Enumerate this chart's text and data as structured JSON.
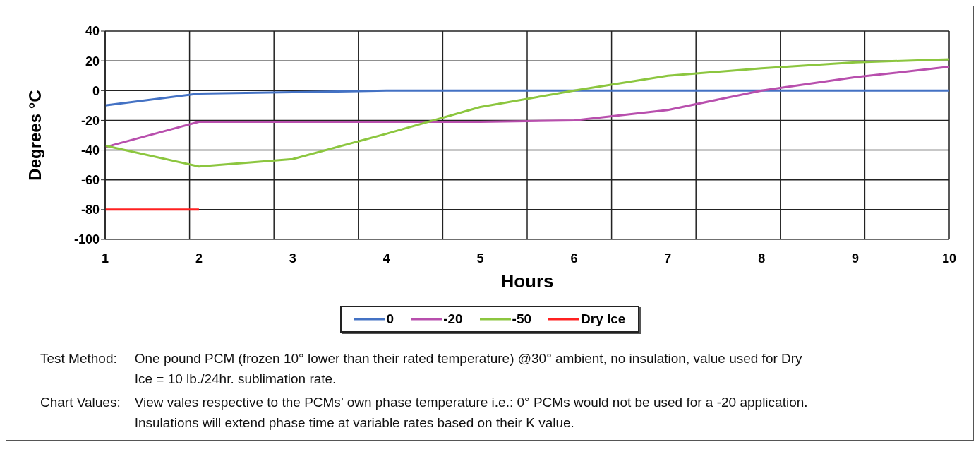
{
  "chart_data": {
    "type": "line",
    "xlabel": "Hours",
    "ylabel": "Degrees °C",
    "categories": [
      "1",
      "2",
      "3",
      "4",
      "5",
      "6",
      "7",
      "8",
      "9",
      "10"
    ],
    "series": [
      {
        "name": "0",
        "color": "#4472c4",
        "values": [
          -10,
          -2,
          -1,
          0,
          0,
          0,
          0,
          0,
          0,
          0
        ]
      },
      {
        "name": "-20",
        "color": "#b84fad",
        "values": [
          -38,
          -21,
          -21,
          -21,
          -21,
          -20,
          -13,
          0,
          9,
          16
        ]
      },
      {
        "name": "-50",
        "color": "#8cc63f",
        "values": [
          -37,
          -51,
          -46,
          -29,
          -11,
          0,
          10,
          15,
          19,
          21
        ]
      },
      {
        "name": "Dry Ice",
        "color": "#ff2020",
        "values": [
          -80,
          -80,
          null,
          null,
          null,
          null,
          null,
          null,
          null,
          null
        ]
      }
    ],
    "ylim": [
      -100,
      40
    ],
    "yticks": [
      -100,
      -80,
      -60,
      -40,
      -20,
      0,
      20,
      40
    ],
    "grid": true,
    "legend": "bottom",
    "marker": "none",
    "line_style": "solid",
    "annotations": [
      "Test Method:",
      "One pound PCM (frozen 10° lower than their rated temperature) @30° ambient, no insulation, value used for Dry Ice = 10 lb./24hr. sublimation rate.",
      "Chart Values:",
      "View vales respective to the PCMs’ own phase temperature i.e.: 0° PCMs would not be used for a -20 application. Insulations will extend phase time at variable rates based on their K value."
    ]
  }
}
